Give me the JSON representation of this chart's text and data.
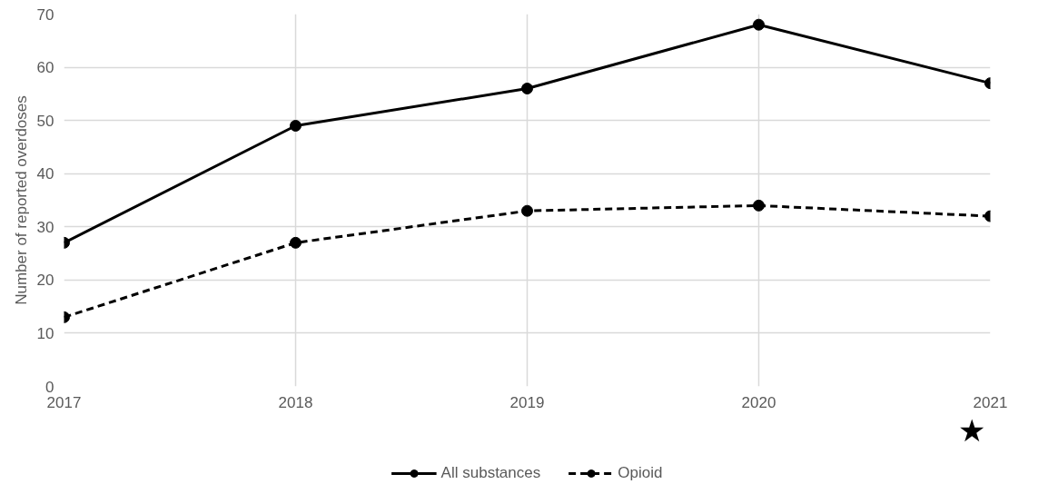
{
  "chart_data": {
    "type": "line",
    "ylabel": "Number of reported overdoses",
    "categories": [
      "2017",
      "2018",
      "2019",
      "2020",
      "2021"
    ],
    "series": [
      {
        "name": "All substances",
        "color": "#000000",
        "values": [
          27,
          49,
          56,
          68,
          57
        ],
        "line_style": "solid"
      },
      {
        "name": "Opioid",
        "color": "#000000",
        "values": [
          13,
          27,
          33,
          34,
          32
        ],
        "line_style": "dashed"
      }
    ],
    "ylim": [
      0,
      70
    ],
    "yticks": [
      0,
      10,
      20,
      30,
      40,
      50,
      60,
      70
    ],
    "grid": true,
    "legend": "bottom",
    "marker": "circle",
    "annotations": [
      "★"
    ]
  }
}
